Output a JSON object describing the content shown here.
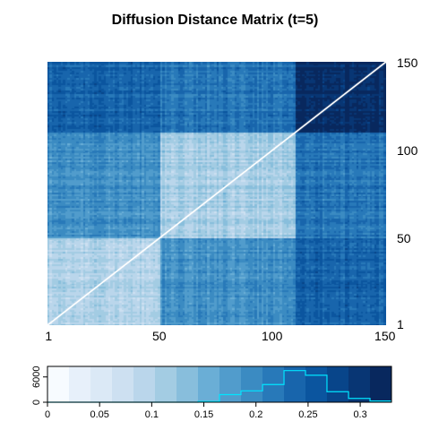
{
  "chart_data": [
    {
      "type": "heatmap",
      "title": "Diffusion Distance Matrix (t=5)",
      "n": 150,
      "x_ticks": [
        1,
        50,
        100,
        150
      ],
      "x_tick_labels": [
        "1",
        "50",
        "100",
        "150"
      ],
      "y_ticks": [
        1,
        50,
        100,
        150
      ],
      "y_tick_labels": [
        "1",
        "50",
        "100",
        "150"
      ],
      "y_axis_side": "right",
      "diagonal": "white line",
      "value_range": [
        0,
        0.33
      ],
      "groups": [
        {
          "start": 1,
          "end": 50
        },
        {
          "start": 51,
          "end": 110
        },
        {
          "start": 111,
          "end": 150
        }
      ],
      "group_mean_distance": [
        [
          0.1,
          0.19,
          0.24
        ],
        [
          0.19,
          0.11,
          0.22
        ],
        [
          0.24,
          0.22,
          0.31
        ]
      ]
    },
    {
      "type": "bar",
      "subtype": "color key with histogram",
      "colors": [
        "#f7fbff",
        "#e7f0fa",
        "#dbe9f6",
        "#cde0f1",
        "#bad6eb",
        "#a3cce3",
        "#88bedc",
        "#6aaed6",
        "#519ccc",
        "#3b8bc2",
        "#2879b9",
        "#1865ac",
        "#0b559f",
        "#08458a",
        "#083674",
        "#08285e"
      ],
      "breaks": [
        0,
        0.0206,
        0.0413,
        0.0619,
        0.0825,
        0.1031,
        0.1238,
        0.1444,
        0.165,
        0.1856,
        0.2063,
        0.2269,
        0.2475,
        0.2681,
        0.2888,
        0.3094,
        0.33
      ],
      "x_ticks": [
        0,
        0.05,
        0.1,
        0.15,
        0.2,
        0.25,
        0.3
      ],
      "x_tick_labels": [
        "0",
        "0.05",
        "0.1",
        "0.15",
        "0.2",
        "0.25",
        "0.3"
      ],
      "y_ticks": [
        0,
        6000
      ],
      "y_tick_labels": [
        "0",
        "6000"
      ],
      "ylim": [
        0,
        8500
      ],
      "histogram_counts": [
        0,
        0,
        0,
        0,
        0,
        0,
        0,
        200,
        1800,
        2700,
        4200,
        7500,
        6400,
        2500,
        900,
        300
      ],
      "histogram_color": "#00e5ff"
    }
  ]
}
